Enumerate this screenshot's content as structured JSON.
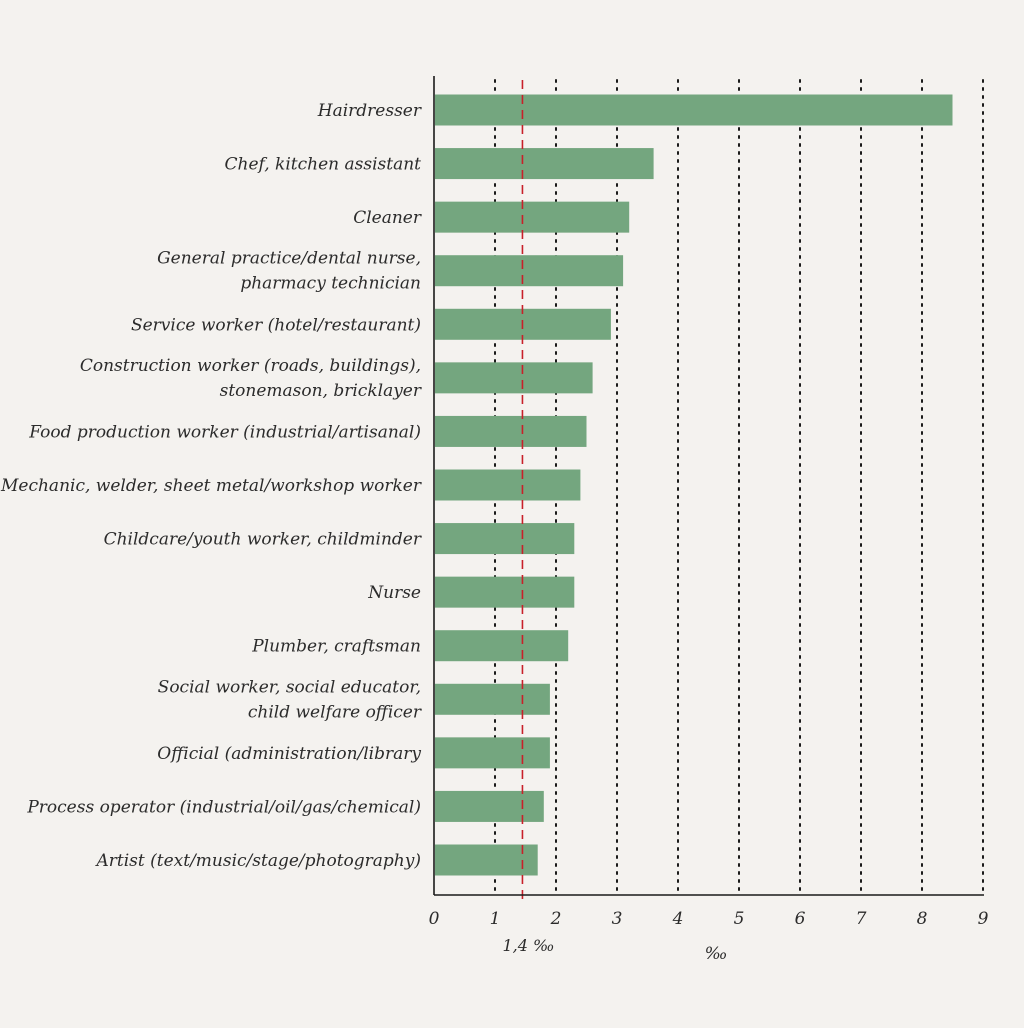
{
  "colors": {
    "background": "#f4f2ef",
    "bar": "#74a67f",
    "axis": "#1a1a1a",
    "grid": "#1a1a1a",
    "reference_line": "#c8202a",
    "text": "#2b2b2b"
  },
  "chart_data": {
    "type": "bar",
    "orientation": "horizontal",
    "categories": [
      [
        "Hairdresser"
      ],
      [
        "Chef, kitchen assistant"
      ],
      [
        "Cleaner"
      ],
      [
        "General practice/dental nurse,",
        "pharmacy technician"
      ],
      [
        "Service worker (hotel/restaurant)"
      ],
      [
        "Construction worker (roads, buildings),",
        "stonemason, bricklayer"
      ],
      [
        "Food production worker (industrial/artisanal)"
      ],
      [
        "Mechanic, welder, sheet metal/workshop worker"
      ],
      [
        "Childcare/youth worker, childminder"
      ],
      [
        "Nurse"
      ],
      [
        "Plumber, craftsman"
      ],
      [
        "Social worker, social educator,",
        "child welfare officer"
      ],
      [
        "Official (administration/library"
      ],
      [
        "Process operator (industrial/oil/gas/chemical)"
      ],
      [
        "Artist (text/music/stage/photography)"
      ]
    ],
    "values": [
      8.5,
      3.6,
      3.2,
      3.1,
      2.9,
      2.6,
      2.5,
      2.4,
      2.3,
      2.3,
      2.2,
      1.9,
      1.9,
      1.8,
      1.7
    ],
    "xlim": [
      0,
      9
    ],
    "xticks": [
      "0",
      "1",
      "2",
      "3",
      "4",
      "5",
      "6",
      "7",
      "8",
      "9"
    ],
    "xlabel": "‰",
    "grid": "vertical dotted",
    "reference_line": {
      "value": 1.45,
      "label": "1,4 ‰"
    }
  }
}
